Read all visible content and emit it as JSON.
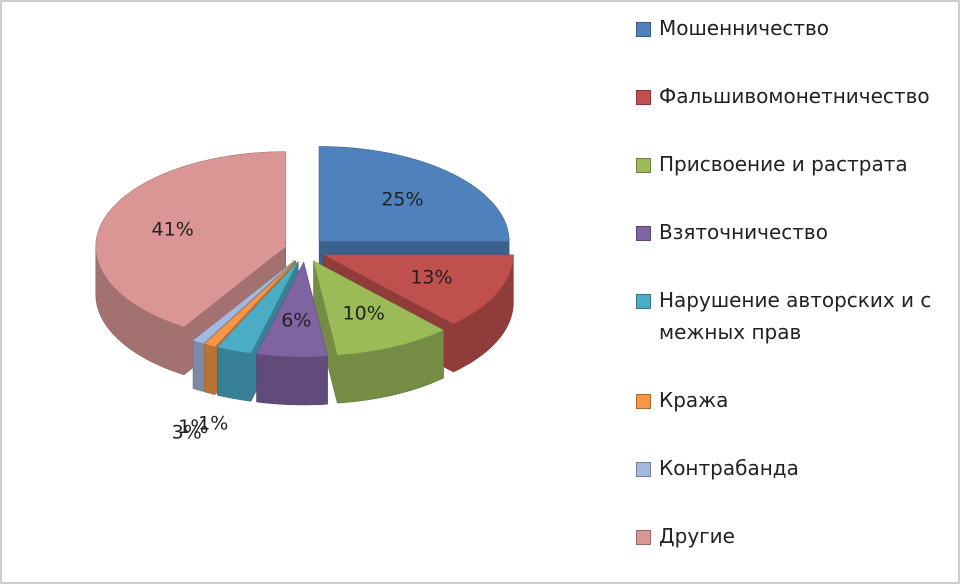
{
  "chart_data": {
    "type": "pie",
    "categories": [
      "Мошенничество",
      "Фальшивомонетничество",
      "Присвоение и растрата",
      "Взяточничество",
      "Нарушение авторских и смежных прав",
      "Кража",
      "Контрабанда",
      "Другие"
    ],
    "values": [
      25,
      13,
      10,
      6,
      3,
      1,
      1,
      41
    ],
    "value_labels": [
      "25%",
      "13%",
      "10%",
      "6%",
      "3%",
      "1%",
      "1%",
      "41%"
    ],
    "colors": [
      "#4f81bd",
      "#c0504d",
      "#9bbb59",
      "#8064a2",
      "#4bacc6",
      "#f79646",
      "#a5b8e0",
      "#d99694"
    ],
    "legend": "right"
  }
}
